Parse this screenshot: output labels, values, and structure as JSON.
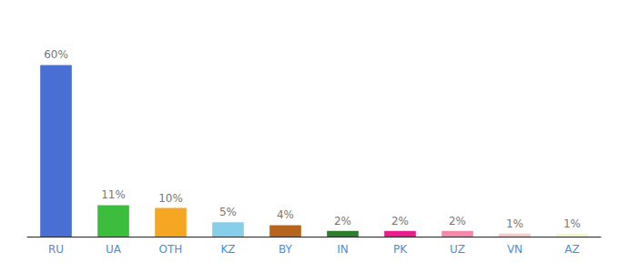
{
  "chart_data": {
    "type": "bar",
    "categories": [
      "RU",
      "UA",
      "OTH",
      "KZ",
      "BY",
      "IN",
      "PK",
      "UZ",
      "VN",
      "AZ"
    ],
    "values": [
      60,
      11,
      10,
      5,
      4,
      2,
      2,
      2,
      1,
      1
    ],
    "value_labels": [
      "60%",
      "11%",
      "10%",
      "5%",
      "4%",
      "2%",
      "2%",
      "2%",
      "1%",
      "1%"
    ],
    "colors": [
      "#4a6fd4",
      "#3dbd3d",
      "#f5a623",
      "#87ceeb",
      "#b5651d",
      "#2d7d2d",
      "#e91e8c",
      "#f48aaa",
      "#f9c8c8",
      "#f5f5cc"
    ],
    "ylim": [
      0,
      70
    ],
    "data_labels": true,
    "tick_labels": "x",
    "grid": false
  }
}
